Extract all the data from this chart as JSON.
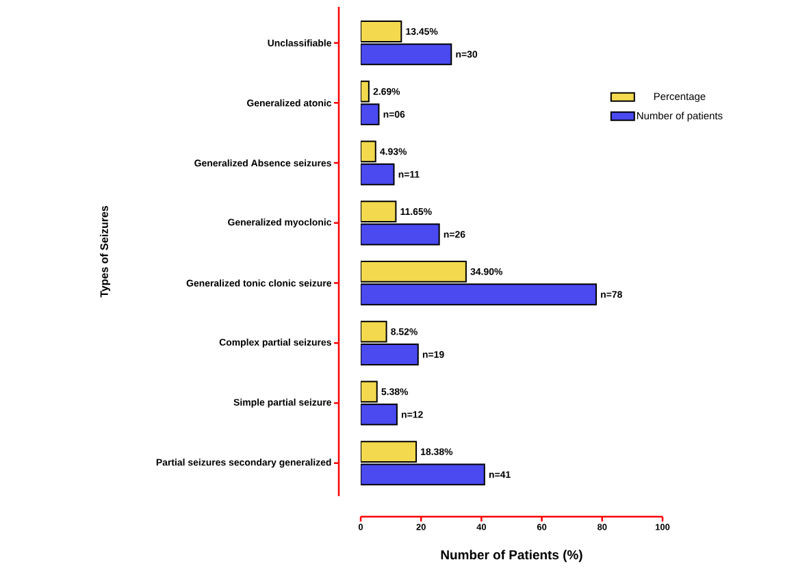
{
  "chart_data": {
    "type": "bar",
    "orientation": "horizontal",
    "xlabel": "Number of Patients (%)",
    "ylabel": "Types of Seizures",
    "categories": [
      "Unclassifiable",
      "Generalized atonic",
      "Generalized Absence seizures",
      "Generalized myoclonic",
      "Generalized tonic clonic seizure",
      "Complex partial seizures",
      "Simple partial seizure",
      "Partial seizures secondary generalized"
    ],
    "series": [
      {
        "name": "Percentage",
        "color": "#f2d94e",
        "values": [
          13.45,
          2.69,
          4.93,
          11.65,
          34.9,
          8.52,
          5.38,
          18.38
        ],
        "value_labels": [
          "13.45%",
          "2.69%",
          "4.93%",
          "11.65%",
          "34.90%",
          "8.52%",
          "5.38%",
          "18.38%"
        ]
      },
      {
        "name": "Number of patients",
        "color": "#4a4af0",
        "values": [
          30,
          6,
          11,
          26,
          78,
          19,
          12,
          41
        ],
        "value_labels": [
          "n=30",
          "n=06",
          "n=11",
          "n=26",
          "n=78",
          "n=19",
          "n=12",
          "n=41"
        ]
      }
    ],
    "xlim": [
      0,
      100
    ],
    "xticks": [
      0,
      20,
      40,
      60,
      80,
      100
    ],
    "grid": false,
    "legend": "top right"
  }
}
